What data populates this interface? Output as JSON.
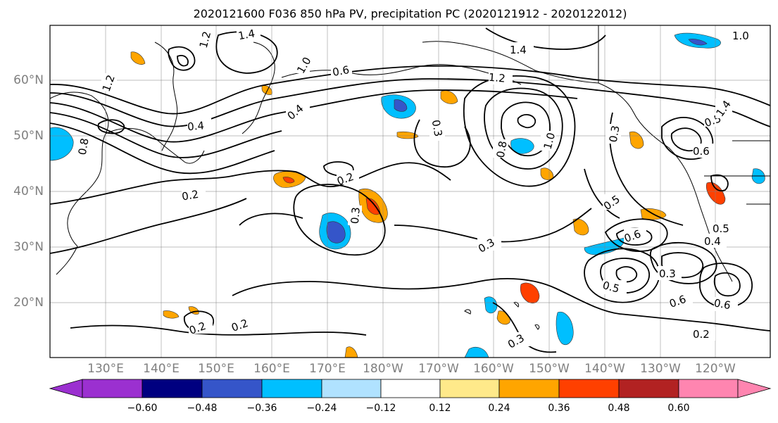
{
  "title": "2020121600 F036 850 hPa PV, precipitation PC (2020121912 - 2020122012)",
  "lat_labels": [
    "60°N",
    "50°N",
    "40°N",
    "30°N",
    "20°N"
  ],
  "lon_labels": [
    "130°E",
    "140°E",
    "150°E",
    "160°E",
    "170°E",
    "180°W",
    "170°W",
    "160°W",
    "150°W",
    "140°W",
    "130°W",
    "120°W"
  ],
  "colorbar": {
    "tick_labels": [
      "−0.60",
      "−0.48",
      "−0.36",
      "−0.24",
      "−0.12",
      "0.12",
      "0.24",
      "0.36",
      "0.48",
      "0.60"
    ],
    "colors": [
      "#9b30d0",
      "#000080",
      "#3555c9",
      "#00bfff",
      "#b0e2ff",
      "#ffffff",
      "#ffe98a",
      "#ffa500",
      "#ff4000",
      "#b22222",
      "#ff85b0"
    ]
  },
  "contour_labels": [
    {
      "text": "1.4"
    },
    {
      "text": "1.2"
    },
    {
      "text": "1.0"
    },
    {
      "text": "0.6"
    },
    {
      "text": "1.4"
    },
    {
      "text": "1.2"
    },
    {
      "text": "0.4"
    },
    {
      "text": "0.4"
    },
    {
      "text": "0.3"
    },
    {
      "text": "0.8"
    },
    {
      "text": "1.0"
    },
    {
      "text": "0.3"
    },
    {
      "text": "0.5"
    },
    {
      "text": "0.6"
    },
    {
      "text": "0.2"
    },
    {
      "text": "0.2"
    },
    {
      "text": "0.3"
    },
    {
      "text": "0.3"
    },
    {
      "text": "0.5"
    },
    {
      "text": "0.6"
    },
    {
      "text": "0.4"
    },
    {
      "text": "0.5"
    },
    {
      "text": "0.3"
    },
    {
      "text": "0.5"
    },
    {
      "text": "0.6"
    },
    {
      "text": "0.6"
    },
    {
      "text": "0.2"
    },
    {
      "text": "0.2"
    },
    {
      "text": "0.2"
    },
    {
      "text": "0.3"
    },
    {
      "text": "1.0"
    },
    {
      "text": "1.4"
    },
    {
      "text": "1.2"
    },
    {
      "text": "0.8"
    }
  ]
}
